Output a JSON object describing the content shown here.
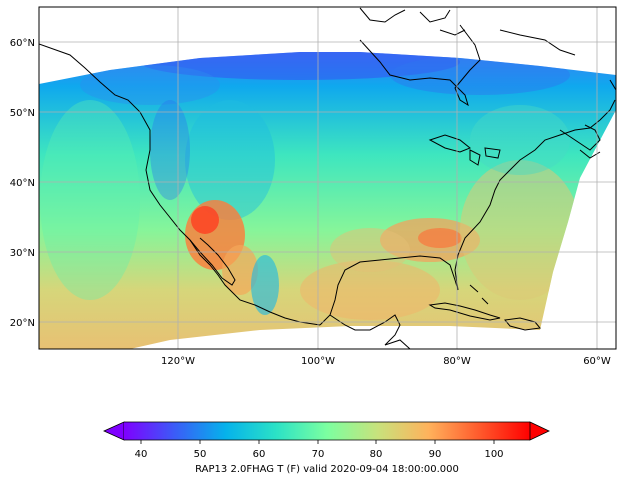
{
  "map": {
    "lat_ticks": [
      "60°N",
      "50°N",
      "40°N",
      "30°N",
      "20°N"
    ],
    "lon_ticks": [
      "120°W",
      "100°W",
      "80°W",
      "60°W"
    ],
    "gridlines": true
  },
  "colorbar": {
    "ticks": [
      "40",
      "50",
      "60",
      "70",
      "80",
      "90",
      "100"
    ],
    "range": [
      35,
      107
    ],
    "extend": "both",
    "colormap": "rainbow",
    "colors": [
      "#7f00ff",
      "#3b5cf7",
      "#05b2eb",
      "#2be2c6",
      "#7cffa0",
      "#c8e27c",
      "#ffb25c",
      "#ff5a2c",
      "#ff0000"
    ],
    "caption": "RAP13 2.0FHAG T (F) valid 2020-09-04 18:00:00.000"
  }
}
